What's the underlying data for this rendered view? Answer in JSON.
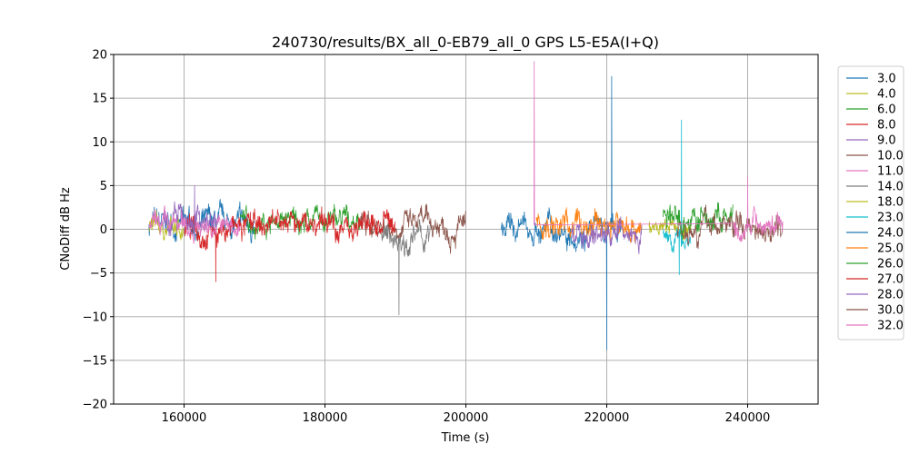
{
  "chart_data": {
    "type": "line",
    "title": "240730/results/BX_all_0-EB79_all_0 GPS L5-E5A(I+Q)",
    "xlabel": "Time (s)",
    "ylabel": "CNoDiff dB Hz",
    "xlim": [
      150000,
      250000
    ],
    "ylim": [
      -20,
      20
    ],
    "x_ticks": [
      160000,
      180000,
      200000,
      220000,
      240000
    ],
    "x_tick_labels": [
      "160000",
      "180000",
      "200000",
      "220000",
      "240000"
    ],
    "y_ticks": [
      -20,
      -15,
      -10,
      -5,
      0,
      5,
      10,
      15,
      20
    ],
    "y_tick_labels": [
      "−20",
      "−15",
      "−10",
      "−5",
      "0",
      "5",
      "10",
      "15",
      "20"
    ],
    "grid": true,
    "legend_position": "outside-right",
    "series": [
      {
        "name": "3.0",
        "color": "#1f77b4",
        "x_range": [
          155000,
          170000
        ],
        "base": 0.5,
        "amp": 1.5
      },
      {
        "name": "4.0",
        "color": "#bcbd22",
        "x_range": [
          155000,
          160000
        ],
        "base": 0.0,
        "amp": 1.2
      },
      {
        "name": "6.0",
        "color": "#2ca02c",
        "x_range": [
          168000,
          185000
        ],
        "base": 1.0,
        "amp": 1.3
      },
      {
        "name": "8.0",
        "color": "#d62728",
        "x_range": [
          160000,
          172000
        ],
        "base": 0.0,
        "amp": 1.6,
        "spikes": [
          {
            "x": 164500,
            "y": -6
          }
        ]
      },
      {
        "name": "9.0",
        "color": "#9467bd",
        "x_range": [
          157000,
          165000
        ],
        "base": 1.0,
        "amp": 1.5,
        "spikes": [
          {
            "x": 161500,
            "y": 5
          }
        ]
      },
      {
        "name": "10.0",
        "color": "#8c564b",
        "x_range": [
          185000,
          200000
        ],
        "base": 0.5,
        "amp": 1.5
      },
      {
        "name": "11.0",
        "color": "#e377c2",
        "x_range": [
          155000,
          168000
        ],
        "base": 0.3,
        "amp": 1.3
      },
      {
        "name": "14.0",
        "color": "#7f7f7f",
        "x_range": [
          188000,
          195000
        ],
        "base": -1.0,
        "amp": 1.6,
        "spikes": [
          {
            "x": 190500,
            "y": -9.8
          }
        ]
      },
      {
        "name": "18.0",
        "color": "#bcbd22",
        "x_range": [
          226000,
          232000
        ],
        "base": 0.0,
        "amp": 1.0
      },
      {
        "name": "23.0",
        "color": "#17becf",
        "x_range": [
          228000,
          232000
        ],
        "base": -1.0,
        "amp": 1.2,
        "spikes": [
          {
            "x": 230600,
            "y": 12.5
          },
          {
            "x": 230300,
            "y": -5.2
          }
        ]
      },
      {
        "name": "24.0",
        "color": "#1f77b4",
        "x_range": [
          205000,
          222000
        ],
        "base": 0.0,
        "amp": 1.6,
        "spikes": [
          {
            "x": 220000,
            "y": -13.8
          },
          {
            "x": 220700,
            "y": 17.5
          }
        ]
      },
      {
        "name": "25.0",
        "color": "#ff7f0e",
        "x_range": [
          210000,
          225000
        ],
        "base": 0.5,
        "amp": 1.7
      },
      {
        "name": "26.0",
        "color": "#2ca02c",
        "x_range": [
          228000,
          238000
        ],
        "base": 1.0,
        "amp": 1.7
      },
      {
        "name": "27.0",
        "color": "#d62728",
        "x_range": [
          172000,
          190000
        ],
        "base": 0.5,
        "amp": 1.6
      },
      {
        "name": "28.0",
        "color": "#9467bd",
        "x_range": [
          215000,
          225000
        ],
        "base": -0.5,
        "amp": 1.6
      },
      {
        "name": "30.0",
        "color": "#8c564b",
        "x_range": [
          230000,
          245000
        ],
        "base": 0.5,
        "amp": 1.5
      },
      {
        "name": "32.0",
        "color": "#e377c2",
        "x_range": [
          238000,
          245000
        ],
        "base": 0.5,
        "amp": 1.4,
        "spikes": [
          {
            "x": 209700,
            "y": 19.2
          },
          {
            "x": 240000,
            "y": 6
          }
        ]
      }
    ]
  }
}
